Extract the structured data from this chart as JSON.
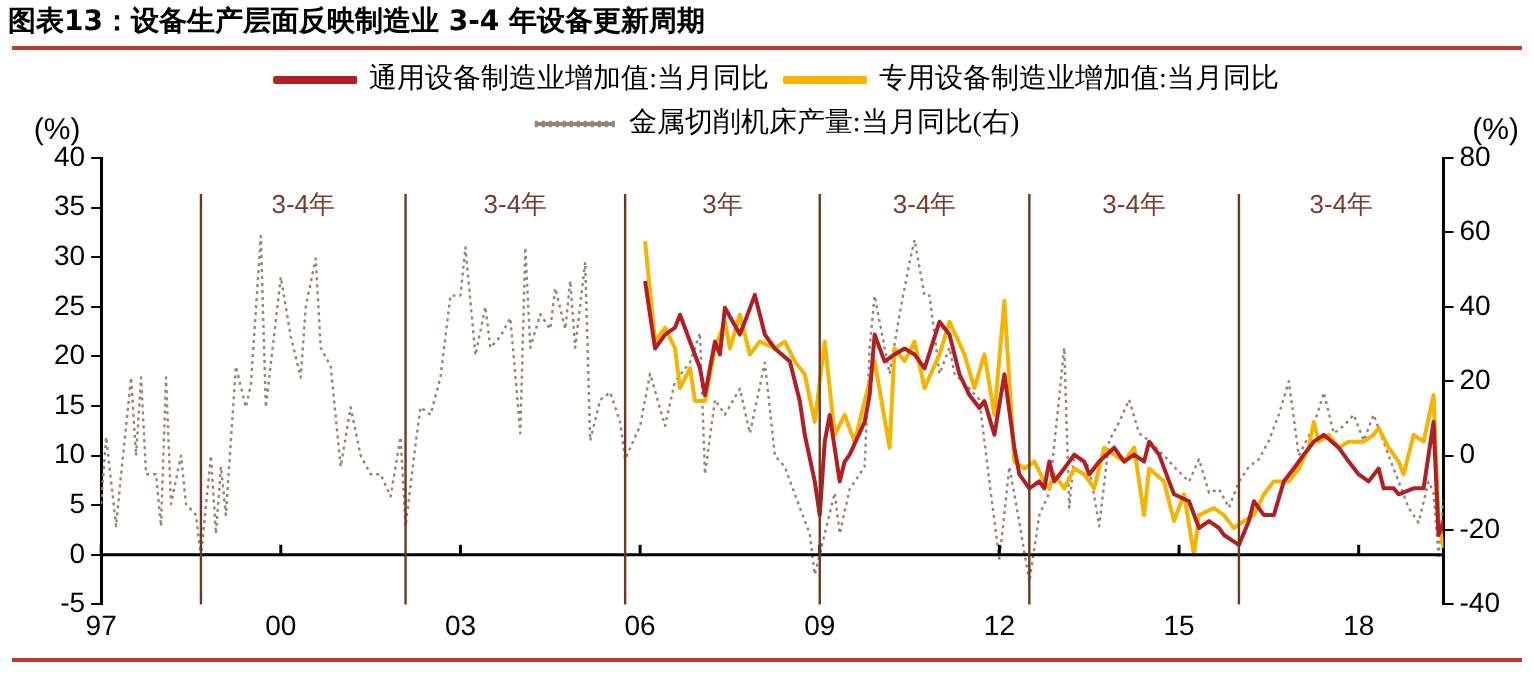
{
  "chart_data": {
    "type": "line",
    "title": "图表13：设备生产层面反映制造业 3-4 年设备更新周期",
    "ylabel": "(%)",
    "y2label": "(%)",
    "xlim": [
      "1997-01",
      "2019-06"
    ],
    "xticks": [
      {
        "value": "1997-01",
        "label": "97"
      },
      {
        "value": "2000-01",
        "label": "00"
      },
      {
        "value": "2003-01",
        "label": "03"
      },
      {
        "value": "2006-01",
        "label": "06"
      },
      {
        "value": "2009-01",
        "label": "09"
      },
      {
        "value": "2012-01",
        "label": "12"
      },
      {
        "value": "2015-01",
        "label": "15"
      },
      {
        "value": "2018-01",
        "label": "18"
      }
    ],
    "ylim": [
      -5,
      40
    ],
    "yticks": [
      -5,
      0,
      5,
      10,
      15,
      20,
      25,
      30,
      35,
      40
    ],
    "y2lim": [
      -40,
      80
    ],
    "y2ticks": [
      -40,
      -20,
      0,
      20,
      40,
      60,
      80
    ],
    "grid": false,
    "legend": "top",
    "marker": "none",
    "ref_lines": [
      {
        "axis": "x",
        "value": "1998-09",
        "color": "#6b3a1e"
      },
      {
        "axis": "x",
        "value": "2002-02",
        "color": "#6b3a1e"
      },
      {
        "axis": "x",
        "value": "2005-10",
        "color": "#6b3a1e"
      },
      {
        "axis": "x",
        "value": "2009-01",
        "color": "#6b3a1e"
      },
      {
        "axis": "x",
        "value": "2012-07",
        "color": "#6b3a1e"
      },
      {
        "axis": "x",
        "value": "2016-01",
        "color": "#6b3a1e"
      }
    ],
    "annotations": [
      "3-4年",
      "3-4年",
      "3年",
      "3-4年",
      "3-4年",
      "3-4年"
    ],
    "series": [
      {
        "name": "通用设备制造业增加值:当月同比",
        "color": "#b01f24",
        "line_style": "solid",
        "x": [
          "2006-02",
          "2006-04",
          "2006-06",
          "2006-08",
          "2006-09",
          "2006-11",
          "2007-01",
          "2007-02",
          "2007-04",
          "2007-05",
          "2007-06",
          "2007-09",
          "2007-10",
          "2007-12",
          "2008-02",
          "2008-04",
          "2008-07",
          "2008-09",
          "2008-10",
          "2008-12",
          "2009-01",
          "2009-02",
          "2009-03",
          "2009-05",
          "2009-06",
          "2009-07",
          "2009-10",
          "2009-11",
          "2009-12",
          "2010-02",
          "2010-04",
          "2010-06",
          "2010-08",
          "2010-10",
          "2011-01",
          "2011-03",
          "2011-05",
          "2011-07",
          "2011-09",
          "2011-10",
          "2011-12",
          "2012-02",
          "2012-04",
          "2012-05",
          "2012-07",
          "2012-09",
          "2012-10",
          "2012-11",
          "2012-12",
          "2013-02",
          "2013-04",
          "2013-06",
          "2013-07",
          "2013-09",
          "2013-12",
          "2014-02",
          "2014-04",
          "2014-06",
          "2014-07",
          "2014-09",
          "2014-11",
          "2014-12",
          "2015-03",
          "2015-05",
          "2015-07",
          "2015-09",
          "2015-10",
          "2016-01",
          "2016-03",
          "2016-04",
          "2016-06",
          "2016-08",
          "2016-10",
          "2016-12",
          "2017-02",
          "2017-04",
          "2017-06",
          "2017-09",
          "2017-11",
          "2018-01",
          "2018-03",
          "2018-05",
          "2018-06",
          "2018-08",
          "2018-09",
          "2018-12",
          "2019-02",
          "2019-04",
          "2019-05",
          "2019-06"
        ],
        "values": [
          27.6,
          20.8,
          22.2,
          22.9,
          24.2,
          21.5,
          18.8,
          16.1,
          21.5,
          20.2,
          24.9,
          22.2,
          23.5,
          26.2,
          22.2,
          20.8,
          19.5,
          15.5,
          12.1,
          7.4,
          4.0,
          11.4,
          14.1,
          7.4,
          9.4,
          10.1,
          13.4,
          16.1,
          22.2,
          19.5,
          20.2,
          20.8,
          20.2,
          18.8,
          23.5,
          22.2,
          18.2,
          16.1,
          14.8,
          15.5,
          12.1,
          18.2,
          10.8,
          8.1,
          6.7,
          7.4,
          6.7,
          9.4,
          7.4,
          8.7,
          10.1,
          9.4,
          8.1,
          9.4,
          10.8,
          9.4,
          10.1,
          9.4,
          11.4,
          10.1,
          7.4,
          6.1,
          5.4,
          2.7,
          3.4,
          2.7,
          2.0,
          1.0,
          3.4,
          5.4,
          4.0,
          4.0,
          7.4,
          8.7,
          10.1,
          11.4,
          12.1,
          10.8,
          9.4,
          8.1,
          7.4,
          8.7,
          6.7,
          6.7,
          6.1,
          6.7,
          6.7,
          13.4,
          2.0,
          3.4
        ]
      },
      {
        "name": "专用设备制造业增加值:当月同比",
        "color": "#f5b400",
        "line_style": "solid",
        "x": [
          "2006-02",
          "2006-04",
          "2006-06",
          "2006-08",
          "2006-09",
          "2006-11",
          "2006-12",
          "2007-02",
          "2007-04",
          "2007-06",
          "2007-07",
          "2007-09",
          "2007-11",
          "2008-01",
          "2008-04",
          "2008-06",
          "2008-08",
          "2008-10",
          "2008-12",
          "2009-02",
          "2009-04",
          "2009-06",
          "2009-08",
          "2009-10",
          "2009-12",
          "2010-03",
          "2010-04",
          "2010-06",
          "2010-08",
          "2010-10",
          "2011-01",
          "2011-03",
          "2011-06",
          "2011-08",
          "2011-10",
          "2011-12",
          "2012-02",
          "2012-04",
          "2012-06",
          "2012-08",
          "2012-10",
          "2012-11",
          "2012-12",
          "2013-02",
          "2013-04",
          "2013-06",
          "2013-08",
          "2013-10",
          "2013-12",
          "2014-02",
          "2014-04",
          "2014-06",
          "2014-07",
          "2014-10",
          "2014-12",
          "2015-02",
          "2015-04",
          "2015-05",
          "2015-08",
          "2015-10",
          "2015-12",
          "2016-02",
          "2016-04",
          "2016-06",
          "2016-08",
          "2016-11",
          "2017-01",
          "2017-03",
          "2017-04",
          "2017-05",
          "2017-07",
          "2017-09",
          "2017-11",
          "2018-02",
          "2018-04",
          "2018-05",
          "2018-07",
          "2018-09",
          "2018-10",
          "2018-12",
          "2019-02",
          "2019-04",
          "2019-05",
          "2019-06"
        ],
        "values": [
          31.6,
          21.5,
          22.9,
          20.8,
          16.8,
          18.8,
          15.5,
          15.5,
          20.8,
          23.5,
          20.8,
          24.2,
          20.2,
          21.5,
          20.8,
          21.5,
          19.5,
          18.2,
          13.4,
          21.5,
          12.1,
          14.1,
          11.4,
          15.5,
          19.5,
          10.8,
          20.8,
          19.5,
          21.5,
          16.8,
          20.2,
          23.5,
          20.2,
          16.8,
          20.2,
          14.1,
          25.6,
          9.4,
          8.7,
          9.4,
          7.4,
          6.7,
          8.1,
          6.7,
          8.7,
          8.1,
          6.7,
          10.8,
          10.1,
          9.4,
          10.8,
          4.0,
          8.7,
          7.4,
          3.4,
          6.1,
          0,
          4.0,
          4.7,
          4.0,
          2.7,
          3.4,
          4.0,
          6.1,
          7.4,
          7.4,
          8.7,
          10.8,
          13.4,
          11.4,
          12.1,
          10.8,
          11.4,
          11.4,
          12.1,
          12.8,
          10.8,
          9.4,
          8.1,
          12.1,
          11.4,
          16.1,
          3.4,
          0.7
        ]
      },
      {
        "name": "金属切削机床产量:当月同比(右)",
        "color": "#9a8272",
        "line_style": "dotted",
        "axis": "y2",
        "x": [
          "1997-01",
          "1997-02",
          "1997-04",
          "1997-05",
          "1997-07",
          "1997-08",
          "1997-09",
          "1997-10",
          "1997-12",
          "1998-01",
          "1998-02",
          "1998-03",
          "1998-05",
          "1998-06",
          "1998-08",
          "1998-09",
          "1998-11",
          "1998-12",
          "1999-01",
          "1999-02",
          "1999-04",
          "1999-06",
          "1999-07",
          "1999-09",
          "1999-10",
          "2000-01",
          "2000-03",
          "2000-05",
          "2000-06",
          "2000-08",
          "2000-09",
          "2000-11",
          "2001-01",
          "2001-03",
          "2001-05",
          "2001-07",
          "2001-09",
          "2001-11",
          "2002-01",
          "2002-02",
          "2002-04",
          "2002-05",
          "2002-07",
          "2002-09",
          "2002-11",
          "2003-01",
          "2003-02",
          "2003-04",
          "2003-06",
          "2003-07",
          "2003-09",
          "2003-11",
          "2004-01",
          "2004-02",
          "2004-03",
          "2004-05",
          "2004-07",
          "2004-08",
          "2004-10",
          "2004-11",
          "2004-12",
          "2005-02",
          "2005-03",
          "2005-05",
          "2005-07",
          "2005-09",
          "2005-10",
          "2006-01",
          "2006-03",
          "2006-06",
          "2006-08",
          "2006-11",
          "2007-01",
          "2007-02",
          "2007-04",
          "2007-06",
          "2007-09",
          "2007-11",
          "2008-02",
          "2008-04",
          "2008-06",
          "2008-09",
          "2008-11",
          "2008-12",
          "2009-02",
          "2009-04",
          "2009-05",
          "2009-07",
          "2009-10",
          "2009-11",
          "2009-12",
          "2010-03",
          "2010-05",
          "2010-07",
          "2010-08",
          "2010-10",
          "2010-11",
          "2011-01",
          "2011-03",
          "2011-04",
          "2011-07",
          "2011-09",
          "2011-11",
          "2012-01",
          "2012-03",
          "2012-05",
          "2012-07",
          "2012-09",
          "2012-11",
          "2013-02",
          "2013-03",
          "2013-04",
          "2013-07",
          "2013-09",
          "2013-11",
          "2014-01",
          "2014-03",
          "2014-05",
          "2014-07",
          "2014-10",
          "2014-12",
          "2015-03",
          "2015-05",
          "2015-07",
          "2015-09",
          "2015-11",
          "2016-01",
          "2016-03",
          "2016-05",
          "2016-07",
          "2016-09",
          "2016-11",
          "2017-01",
          "2017-04",
          "2017-06",
          "2017-08",
          "2017-10",
          "2017-12",
          "2018-02",
          "2018-04",
          "2018-07",
          "2018-09",
          "2018-11",
          "2019-01",
          "2019-03",
          "2019-04",
          "2019-05",
          "2019-06"
        ],
        "values": [
          -13,
          5,
          -19,
          -5,
          21,
          0,
          21,
          -5,
          -5,
          -19,
          21,
          -13,
          0,
          -13,
          -16,
          -27,
          0,
          -21,
          -3,
          -16,
          24,
          13,
          19,
          59,
          13,
          48,
          32,
          21,
          40,
          53,
          29,
          24,
          -3,
          13,
          0,
          -5,
          -5,
          -11,
          5,
          -19,
          3,
          13,
          11,
          21,
          43,
          43,
          56,
          27,
          40,
          29,
          32,
          37,
          6,
          56,
          29,
          38,
          34,
          45,
          34,
          47,
          29,
          52,
          4,
          15,
          17,
          9,
          -1,
          8,
          22,
          8,
          20,
          25,
          33,
          -5,
          15,
          11,
          18,
          6,
          25,
          0,
          -3,
          -14,
          -21,
          -32,
          -21,
          -10,
          -21,
          -9,
          -3,
          29,
          43,
          22,
          38,
          52,
          58,
          43,
          43,
          22,
          29,
          22,
          18,
          15,
          -7,
          -28,
          -3,
          -18,
          -34,
          -16,
          -10,
          29,
          -14,
          0,
          -3,
          -19,
          4,
          9,
          15,
          6,
          4,
          0,
          -3,
          -7,
          -1,
          -10,
          -9,
          -14,
          -7,
          -3,
          -1,
          4,
          11,
          20,
          0,
          8,
          17,
          6,
          8,
          11,
          4,
          11,
          0,
          -7,
          -14,
          -18,
          -7,
          -10,
          -27,
          -12
        ]
      }
    ]
  }
}
